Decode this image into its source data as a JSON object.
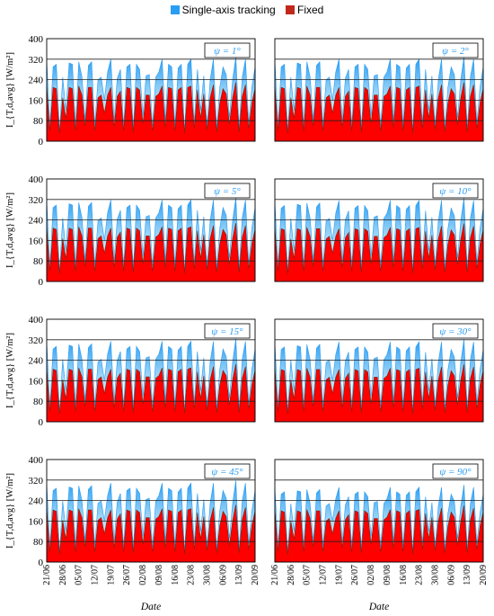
{
  "legend": {
    "items": [
      {
        "label": "Single-axis tracking",
        "color": "#2a9df4"
      },
      {
        "label": "Fixed",
        "color": "#c0281c"
      }
    ]
  },
  "colors": {
    "tracking": "#2a9df4",
    "tracking_light": "#b9e3f7",
    "fixed": "#fe0000",
    "fixed_dark": "#6e2b12",
    "panel_label": "#2a9df4"
  },
  "chart_data": {
    "type": "area",
    "xlabel": "Date",
    "ylabel": "I_{T,d,avg} [W/m²]",
    "ylim": [
      0,
      400
    ],
    "yticks": [
      0,
      80,
      160,
      240,
      320,
      400
    ],
    "grid": true,
    "x_tick_labels": [
      "21/06",
      "28/06",
      "05/07",
      "12/07",
      "19/07",
      "26/07",
      "02/08",
      "09/08",
      "16/08",
      "23/08",
      "30/08",
      "06/09",
      "13/09",
      "20/09"
    ],
    "series_names": [
      "Single-axis tracking",
      "Fixed"
    ],
    "panels": [
      {
        "label": "ψ = 1°",
        "tracking": [
          318,
          60,
          290,
          300,
          40,
          250,
          120,
          305,
          300,
          60,
          310,
          250,
          80,
          295,
          310,
          60,
          240,
          250,
          160,
          270,
          320,
          80,
          245,
          280,
          60,
          290,
          300,
          50,
          300,
          280,
          100,
          255,
          260,
          60,
          250,
          270,
          320,
          80,
          300,
          290,
          60,
          285,
          300,
          40,
          300,
          320,
          70,
          280,
          120,
          255,
          60,
          240,
          320,
          50,
          210,
          290,
          260,
          90,
          240,
          330,
          50,
          250,
          320,
          70,
          210,
          290
        ],
        "fixed": [
          215,
          40,
          210,
          205,
          30,
          170,
          90,
          210,
          205,
          40,
          215,
          180,
          60,
          210,
          210,
          40,
          170,
          180,
          110,
          180,
          210,
          55,
          175,
          195,
          40,
          210,
          205,
          35,
          210,
          200,
          70,
          180,
          180,
          40,
          175,
          185,
          215,
          55,
          210,
          205,
          40,
          200,
          210,
          30,
          210,
          215,
          50,
          200,
          90,
          185,
          45,
          170,
          220,
          35,
          150,
          205,
          185,
          65,
          170,
          230,
          35,
          175,
          220,
          50,
          150,
          205
        ]
      },
      {
        "label": "ψ = 2°",
        "tracking": [
          318,
          60,
          290,
          300,
          40,
          250,
          120,
          305,
          300,
          60,
          310,
          250,
          80,
          295,
          310,
          60,
          240,
          250,
          160,
          270,
          320,
          80,
          245,
          280,
          60,
          290,
          300,
          50,
          300,
          280,
          100,
          255,
          260,
          60,
          250,
          270,
          320,
          80,
          300,
          290,
          60,
          285,
          300,
          40,
          300,
          320,
          70,
          280,
          120,
          255,
          60,
          240,
          320,
          50,
          210,
          290,
          260,
          90,
          240,
          330,
          50,
          250,
          320,
          70,
          210,
          290
        ],
        "fixed": [
          215,
          40,
          210,
          205,
          30,
          170,
          90,
          210,
          205,
          40,
          215,
          180,
          60,
          210,
          210,
          40,
          170,
          180,
          110,
          180,
          210,
          55,
          175,
          195,
          40,
          210,
          205,
          35,
          210,
          200,
          70,
          180,
          180,
          40,
          175,
          185,
          215,
          55,
          210,
          205,
          40,
          200,
          210,
          30,
          210,
          215,
          50,
          200,
          90,
          185,
          45,
          170,
          220,
          35,
          150,
          205,
          185,
          65,
          170,
          230,
          35,
          175,
          220,
          50,
          150,
          205
        ]
      },
      {
        "label": "ψ = 5°",
        "tracking": [
          316,
          60,
          288,
          298,
          40,
          248,
          120,
          303,
          298,
          60,
          308,
          248,
          80,
          293,
          308,
          60,
          238,
          248,
          160,
          268,
          318,
          80,
          243,
          278,
          60,
          288,
          298,
          50,
          298,
          278,
          100,
          253,
          258,
          60,
          248,
          268,
          318,
          80,
          298,
          288,
          60,
          283,
          298,
          40,
          298,
          318,
          70,
          278,
          120,
          253,
          60,
          238,
          318,
          50,
          208,
          288,
          258,
          90,
          238,
          328,
          50,
          248,
          318,
          70,
          208,
          288
        ],
        "fixed": [
          213,
          40,
          208,
          203,
          30,
          168,
          90,
          208,
          203,
          40,
          213,
          178,
          60,
          208,
          208,
          40,
          168,
          178,
          110,
          178,
          208,
          55,
          173,
          193,
          40,
          208,
          203,
          35,
          208,
          198,
          70,
          178,
          178,
          40,
          173,
          183,
          213,
          55,
          208,
          203,
          40,
          198,
          208,
          30,
          208,
          213,
          50,
          198,
          90,
          183,
          45,
          168,
          218,
          35,
          148,
          203,
          183,
          65,
          168,
          228,
          35,
          173,
          218,
          50,
          148,
          203
        ]
      },
      {
        "label": "ψ = 10°",
        "tracking": [
          314,
          60,
          286,
          296,
          40,
          246,
          120,
          301,
          296,
          60,
          306,
          246,
          80,
          291,
          306,
          60,
          236,
          246,
          160,
          266,
          316,
          80,
          241,
          276,
          60,
          286,
          296,
          50,
          296,
          276,
          100,
          251,
          256,
          60,
          246,
          266,
          316,
          80,
          296,
          286,
          60,
          281,
          296,
          40,
          296,
          316,
          70,
          276,
          120,
          251,
          60,
          236,
          316,
          50,
          206,
          286,
          256,
          90,
          236,
          326,
          50,
          246,
          316,
          70,
          206,
          286
        ],
        "fixed": [
          211,
          40,
          206,
          201,
          30,
          166,
          90,
          206,
          201,
          40,
          211,
          176,
          60,
          206,
          206,
          40,
          166,
          176,
          110,
          176,
          206,
          55,
          171,
          191,
          40,
          206,
          201,
          35,
          206,
          196,
          70,
          176,
          176,
          40,
          171,
          181,
          211,
          55,
          206,
          201,
          40,
          196,
          206,
          30,
          206,
          211,
          50,
          196,
          90,
          181,
          45,
          166,
          216,
          35,
          146,
          201,
          181,
          65,
          166,
          226,
          35,
          171,
          216,
          50,
          146,
          201
        ]
      },
      {
        "label": "ψ = 15°",
        "tracking": [
          312,
          60,
          284,
          294,
          40,
          244,
          120,
          299,
          294,
          60,
          304,
          244,
          80,
          289,
          304,
          60,
          234,
          244,
          160,
          264,
          314,
          80,
          239,
          274,
          60,
          284,
          294,
          50,
          294,
          274,
          100,
          249,
          254,
          60,
          244,
          264,
          314,
          80,
          294,
          284,
          60,
          279,
          294,
          40,
          294,
          314,
          70,
          274,
          120,
          249,
          60,
          234,
          314,
          50,
          204,
          284,
          254,
          90,
          234,
          324,
          50,
          244,
          314,
          70,
          204,
          284
        ],
        "fixed": [
          210,
          40,
          205,
          200,
          30,
          165,
          90,
          205,
          200,
          40,
          210,
          175,
          60,
          205,
          205,
          40,
          165,
          175,
          110,
          175,
          205,
          55,
          170,
          190,
          40,
          205,
          200,
          35,
          205,
          195,
          70,
          175,
          175,
          40,
          170,
          180,
          210,
          55,
          205,
          200,
          40,
          195,
          205,
          30,
          205,
          210,
          50,
          195,
          90,
          180,
          45,
          165,
          215,
          35,
          145,
          200,
          180,
          65,
          165,
          225,
          35,
          170,
          215,
          50,
          145,
          200
        ]
      },
      {
        "label": "ψ = 30°",
        "tracking": [
          310,
          60,
          282,
          292,
          40,
          242,
          120,
          297,
          292,
          60,
          302,
          242,
          80,
          287,
          302,
          60,
          232,
          242,
          160,
          262,
          312,
          80,
          237,
          272,
          60,
          282,
          292,
          50,
          292,
          272,
          100,
          247,
          252,
          60,
          242,
          262,
          312,
          80,
          292,
          282,
          60,
          277,
          292,
          40,
          292,
          312,
          70,
          272,
          120,
          247,
          60,
          232,
          312,
          50,
          202,
          282,
          252,
          90,
          232,
          322,
          50,
          242,
          312,
          70,
          202,
          282
        ],
        "fixed": [
          209,
          40,
          204,
          199,
          30,
          164,
          90,
          204,
          199,
          40,
          209,
          174,
          60,
          204,
          204,
          40,
          164,
          174,
          110,
          174,
          204,
          55,
          169,
          189,
          40,
          204,
          199,
          35,
          204,
          194,
          70,
          174,
          174,
          40,
          169,
          179,
          209,
          55,
          204,
          199,
          40,
          194,
          204,
          30,
          204,
          209,
          50,
          194,
          90,
          179,
          45,
          164,
          214,
          35,
          144,
          199,
          179,
          65,
          164,
          224,
          35,
          169,
          214,
          50,
          144,
          199
        ]
      },
      {
        "label": "ψ = 45°",
        "tracking": [
          306,
          60,
          279,
          288,
          40,
          239,
          120,
          293,
          288,
          60,
          298,
          239,
          80,
          283,
          298,
          60,
          229,
          239,
          160,
          259,
          308,
          80,
          234,
          268,
          60,
          279,
          288,
          50,
          288,
          268,
          100,
          244,
          249,
          60,
          239,
          259,
          308,
          80,
          288,
          279,
          60,
          273,
          288,
          40,
          288,
          308,
          70,
          268,
          120,
          244,
          60,
          229,
          308,
          50,
          199,
          279,
          249,
          90,
          229,
          318,
          50,
          239,
          308,
          70,
          199,
          279
        ],
        "fixed": [
          208,
          40,
          203,
          198,
          30,
          163,
          90,
          203,
          198,
          40,
          208,
          173,
          60,
          203,
          203,
          40,
          163,
          173,
          110,
          173,
          203,
          55,
          168,
          188,
          40,
          203,
          198,
          35,
          203,
          193,
          70,
          173,
          173,
          40,
          168,
          178,
          208,
          55,
          203,
          198,
          40,
          193,
          203,
          30,
          203,
          208,
          50,
          193,
          90,
          178,
          45,
          163,
          213,
          35,
          143,
          198,
          178,
          65,
          163,
          223,
          35,
          168,
          213,
          50,
          143,
          198
        ]
      },
      {
        "label": "ψ = 90°",
        "tracking": [
          290,
          60,
          265,
          274,
          40,
          228,
          120,
          278,
          274,
          60,
          283,
          228,
          80,
          269,
          283,
          60,
          219,
          228,
          160,
          247,
          292,
          80,
          223,
          255,
          60,
          265,
          274,
          50,
          274,
          255,
          100,
          232,
          237,
          60,
          228,
          247,
          292,
          80,
          274,
          265,
          60,
          260,
          274,
          40,
          274,
          292,
          70,
          255,
          120,
          232,
          60,
          219,
          292,
          50,
          190,
          265,
          237,
          90,
          219,
          301,
          50,
          228,
          292,
          70,
          190,
          265
        ],
        "fixed": [
          205,
          40,
          200,
          195,
          30,
          160,
          90,
          200,
          195,
          40,
          205,
          170,
          60,
          200,
          200,
          40,
          160,
          170,
          110,
          170,
          200,
          55,
          165,
          185,
          40,
          200,
          195,
          35,
          200,
          190,
          70,
          170,
          170,
          40,
          165,
          175,
          205,
          55,
          200,
          195,
          40,
          190,
          200,
          30,
          200,
          205,
          50,
          190,
          90,
          175,
          45,
          160,
          210,
          35,
          140,
          195,
          175,
          65,
          160,
          220,
          35,
          165,
          210,
          50,
          140,
          195
        ]
      }
    ]
  }
}
